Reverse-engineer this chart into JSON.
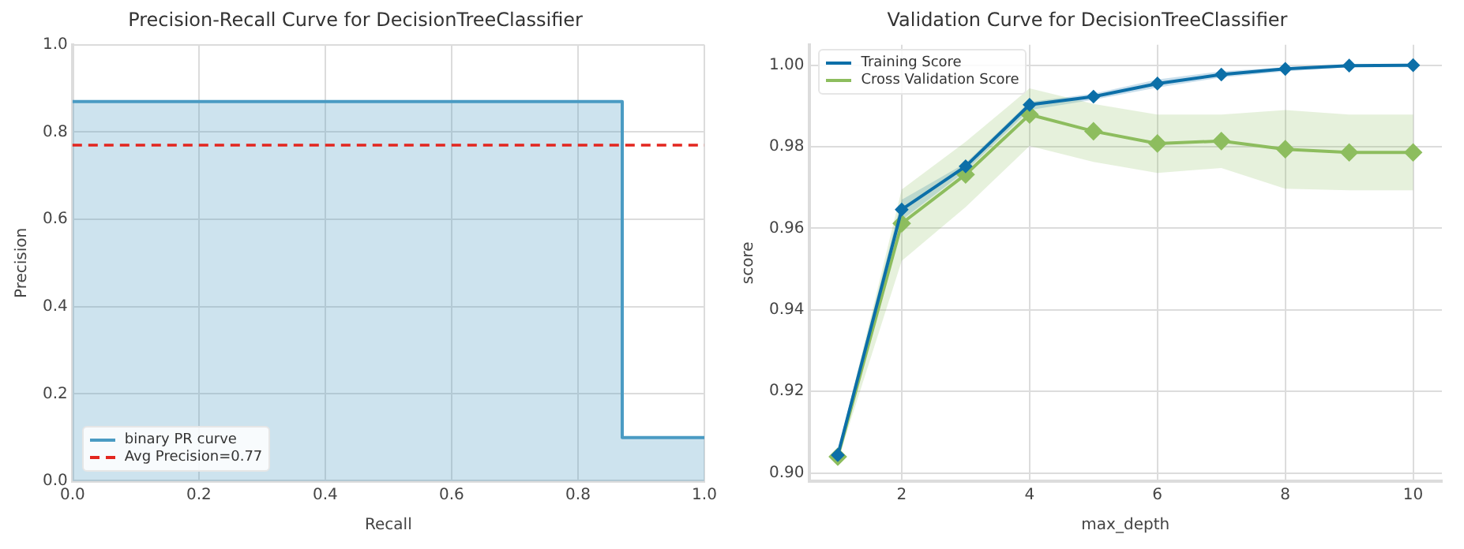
{
  "chart_data": [
    {
      "type": "area",
      "title": "Precision-Recall Curve for DecisionTreeClassifier",
      "xlabel": "Recall",
      "ylabel": "Precision",
      "x": [
        0,
        0.87,
        0.87,
        1
      ],
      "series": [
        {
          "name": "binary PR curve",
          "color": "#4a9bc3",
          "values": [
            0.87,
            0.87,
            0.1,
            0.1
          ]
        }
      ],
      "xlim": [
        0,
        1
      ],
      "ylim": [
        0,
        1
      ],
      "xticks": [
        {
          "value": 0,
          "label": "0.0"
        },
        {
          "value": 0.2,
          "label": "0.2"
        },
        {
          "value": 0.4,
          "label": "0.4"
        },
        {
          "value": 0.6,
          "label": "0.6"
        },
        {
          "value": 0.8,
          "label": "0.8"
        },
        {
          "value": 1,
          "label": "1.0"
        }
      ],
      "yticks": [
        {
          "value": 0,
          "label": "0.0"
        },
        {
          "value": 0.2,
          "label": "0.2"
        },
        {
          "value": 0.4,
          "label": "0.4"
        },
        {
          "value": 0.6,
          "label": "0.6"
        },
        {
          "value": 0.8,
          "label": "0.8"
        },
        {
          "value": 1,
          "label": "1.0"
        }
      ],
      "ref_lines": [
        {
          "axis": "y",
          "value": 0.77,
          "label": "Avg Precision=0.77",
          "color": "#e3261f",
          "line_style": "dashed"
        }
      ],
      "grid": true,
      "legend": "bottom left"
    },
    {
      "type": "line",
      "title": "Validation Curve for DecisionTreeClassifier",
      "xlabel": "max_depth",
      "ylabel": "score",
      "x": [
        1,
        2,
        3,
        4,
        5,
        6,
        7,
        8,
        9,
        10
      ],
      "series": [
        {
          "name": "Training Score",
          "color": "#0c6fa8",
          "values": [
            0.9044,
            0.9646,
            0.9752,
            0.9903,
            0.9923,
            0.9955,
            0.9977,
            0.9991,
            0.9999,
            1.0
          ],
          "lower": [
            0.9035,
            0.962,
            0.974,
            0.989,
            0.9915,
            0.9945,
            0.997,
            0.9985,
            0.9995,
            0.9995
          ],
          "upper": [
            0.9055,
            0.967,
            0.976,
            0.991,
            0.993,
            0.9965,
            0.9985,
            0.9995,
            1.0,
            1.0
          ]
        },
        {
          "name": "Cross Validation Score",
          "color": "#8dbd5e",
          "values": [
            0.904,
            0.9612,
            0.9732,
            0.9879,
            0.9838,
            0.9808,
            0.9814,
            0.9794,
            0.9786,
            0.9786
          ],
          "lower": [
            0.903,
            0.952,
            0.9652,
            0.9802,
            0.9763,
            0.9736,
            0.9748,
            0.9697,
            0.9693,
            0.9693
          ],
          "upper": [
            0.905,
            0.9695,
            0.9812,
            0.9943,
            0.9905,
            0.9879,
            0.9879,
            0.989,
            0.9879,
            0.9879
          ]
        }
      ],
      "xlim": [
        0.55,
        10.45
      ],
      "ylim": [
        0.898,
        1.005
      ],
      "xticks": [
        2,
        4,
        6,
        8,
        10
      ],
      "yticks": [
        {
          "value": 0.9,
          "label": "0.90"
        },
        {
          "value": 0.92,
          "label": "0.92"
        },
        {
          "value": 0.94,
          "label": "0.94"
        },
        {
          "value": 0.96,
          "label": "0.96"
        },
        {
          "value": 0.98,
          "label": "0.98"
        },
        {
          "value": 1.0,
          "label": "1.00"
        }
      ],
      "marker": "diamond",
      "grid": true,
      "legend": "top left"
    }
  ]
}
